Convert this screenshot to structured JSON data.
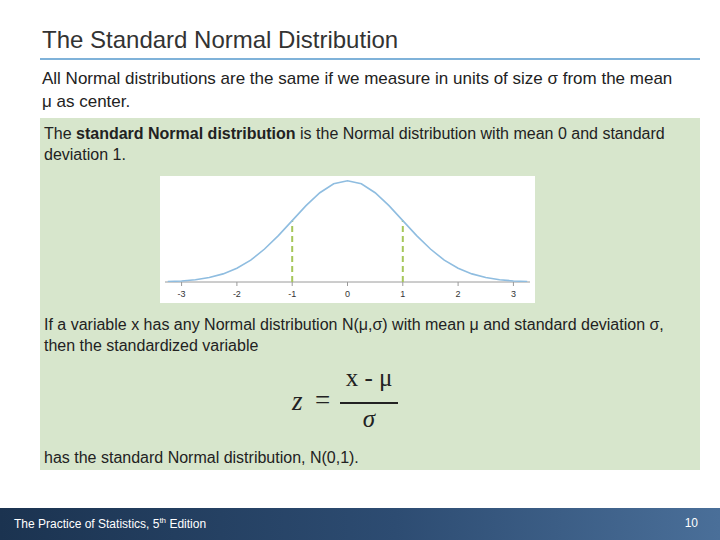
{
  "slide": {
    "title": "The Standard Normal Distribution",
    "intro": "All Normal distributions are the same if we measure in units of size σ from the mean μ as center.",
    "definition": {
      "before": "The ",
      "term": "standard Normal distribution",
      "after": " is the Normal distribution with mean 0 and standard deviation 1."
    },
    "statement": "If a variable x has any Normal distribution N(μ,σ) with mean μ and standard deviation σ, then the standardized variable",
    "formula": {
      "left": "z",
      "equals": "=",
      "numerator": "x - μ",
      "denominator": "σ"
    },
    "conclusion": "has the standard Normal distribution, N(0,1).",
    "footer": {
      "parts": [
        "The Practice of Statistics, 5",
        "th",
        " Edition"
      ]
    },
    "page": "10"
  },
  "chart_data": {
    "type": "line",
    "x": [
      -3.25,
      -3,
      -2.75,
      -2.5,
      -2.25,
      -2,
      -1.75,
      -1.5,
      -1.25,
      -1,
      -0.75,
      -0.5,
      -0.25,
      0,
      0.25,
      0.5,
      0.75,
      1,
      1.25,
      1.5,
      1.75,
      2,
      2.25,
      2.5,
      2.75,
      3,
      3.25
    ],
    "series": [
      {
        "color": "#8fbde0",
        "values": [
          0.002,
          0.004,
          0.009,
          0.018,
          0.032,
          0.054,
          0.086,
          0.13,
          0.183,
          0.242,
          0.301,
          0.352,
          0.387,
          0.399,
          0.387,
          0.352,
          0.301,
          0.242,
          0.183,
          0.13,
          0.086,
          0.054,
          0.032,
          0.018,
          0.009,
          0.004,
          0.002
        ]
      }
    ],
    "reference_lines": [
      {
        "x": -1,
        "y": 0.242,
        "color": "#a6c65a",
        "line_style": "dashed"
      },
      {
        "x": 1,
        "y": 0.242,
        "color": "#a6c65a",
        "line_style": "dashed"
      }
    ],
    "xlim": [
      -3.3,
      3.3
    ],
    "xticks": [
      -3,
      -2,
      -1,
      0,
      1,
      2,
      3
    ],
    "ylim": [
      0,
      0.41
    ],
    "tick_labels": "x"
  }
}
